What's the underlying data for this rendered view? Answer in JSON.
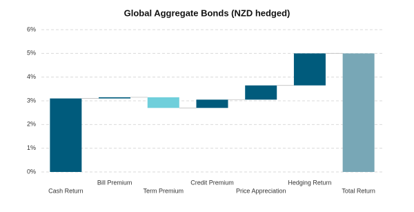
{
  "chart_data": {
    "type": "waterfall",
    "title": "Global Aggregate Bonds (NZD hedged)",
    "categories": [
      "Cash Return",
      "Bill Premium",
      "Term Premium",
      "Credit Premium",
      "Price Appreciation",
      "Hedging Return",
      "Total Return"
    ],
    "values": [
      3.1,
      0.05,
      -0.45,
      0.35,
      0.6,
      1.35,
      5
    ],
    "from_zero": [
      true,
      false,
      false,
      false,
      false,
      false,
      true
    ],
    "colors": [
      "#005b7c",
      "#005b7c",
      "#6fcfdb",
      "#005b7c",
      "#005b7c",
      "#005b7c",
      "#78a7b6"
    ],
    "ylim": [
      0,
      6
    ],
    "yticks": [
      {
        "value": 0,
        "label": "0%"
      },
      {
        "value": 1,
        "label": "1%"
      },
      {
        "value": 2,
        "label": "2%"
      },
      {
        "value": 3,
        "label": "3%"
      },
      {
        "value": 4,
        "label": "4%"
      },
      {
        "value": 5,
        "label": "5%"
      },
      {
        "value": 6,
        "label": "6%"
      }
    ],
    "grid": true
  }
}
